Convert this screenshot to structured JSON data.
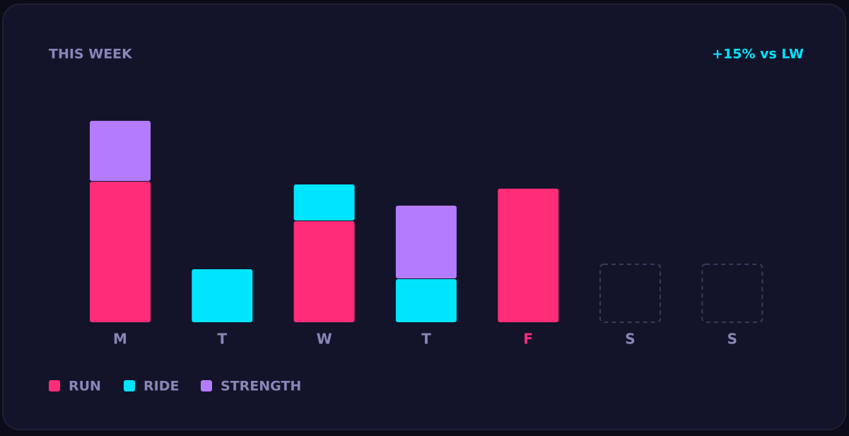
{
  "chart_data": {
    "type": "stacked-bar",
    "title": "THIS WEEK",
    "badge": "+15% vs LW",
    "categories": [
      "M",
      "T",
      "W",
      "T",
      "F",
      "S",
      "S"
    ],
    "highlight_index": 4,
    "highlight_color": "#ff2d78",
    "series": [
      {
        "name": "RUN",
        "color": "#ff2d78",
        "values": [
          100,
          null,
          72,
          null,
          95,
          null,
          null
        ]
      },
      {
        "name": "RIDE",
        "color": "#00e5ff",
        "values": [
          null,
          38,
          26,
          31,
          null,
          null,
          null
        ]
      },
      {
        "name": "STRENGTH",
        "color": "#b57bff",
        "values": [
          43,
          null,
          null,
          52,
          null,
          null,
          null
        ]
      }
    ]
  }
}
